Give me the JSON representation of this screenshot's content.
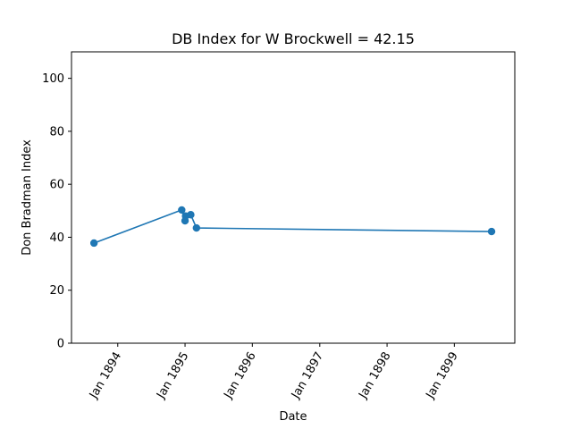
{
  "chart_data": {
    "type": "line",
    "title": "DB Index for W Brockwell = 42.15",
    "xlabel": "Date",
    "ylabel": "Don Bradman Index",
    "xlim": [
      "1893-04-25",
      "1899-11-25"
    ],
    "ylim": [
      0,
      110
    ],
    "x_ticks": [
      {
        "date": "1894-01-01",
        "label": "Jan 1894"
      },
      {
        "date": "1895-01-01",
        "label": "Jan 1895"
      },
      {
        "date": "1896-01-01",
        "label": "Jan 1896"
      },
      {
        "date": "1897-01-01",
        "label": "Jan 1897"
      },
      {
        "date": "1898-01-01",
        "label": "Jan 1898"
      },
      {
        "date": "1899-01-01",
        "label": "Jan 1899"
      }
    ],
    "y_ticks": [
      0,
      20,
      40,
      60,
      80,
      100
    ],
    "grid": false,
    "color": "#1f77b4",
    "series": [
      {
        "x": [
          "1893-08-25",
          "1894-12-14",
          "1895-01-01",
          "1895-01-04",
          "1895-02-01",
          "1895-03-04",
          "1899-07-22"
        ],
        "y": [
          37.8,
          50.3,
          46.2,
          48.0,
          48.5,
          43.5,
          42.15
        ]
      }
    ]
  }
}
